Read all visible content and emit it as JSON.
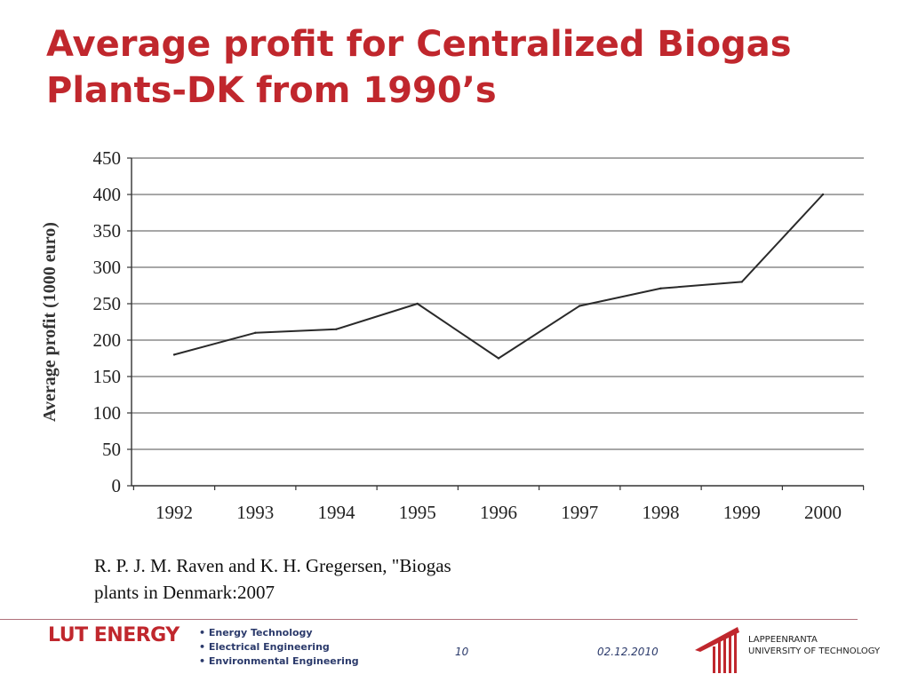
{
  "slide": {
    "title_line1": "Average profit for Centralized Biogas",
    "title_line2": "Plants-DK from 1990’s"
  },
  "chart_data": {
    "type": "line",
    "title": "",
    "xlabel": "",
    "ylabel": "Average profit (1000 euro)",
    "categories": [
      "1992",
      "1993",
      "1994",
      "1995",
      "1996",
      "1997",
      "1998",
      "1999",
      "2000"
    ],
    "series": [
      {
        "values": [
          180,
          210,
          215,
          250,
          175,
          247,
          271,
          280,
          400
        ]
      }
    ],
    "ylim": [
      0,
      450
    ],
    "yticks": [
      0,
      50,
      100,
      150,
      200,
      250,
      300,
      350,
      400,
      450
    ],
    "grid": true,
    "legend": "none",
    "line_color": "#2a2a2a",
    "grid_color": "#8a8a8a"
  },
  "citation": {
    "line1": "R. P. J. M. Raven and K. H. Gregersen, \"Biogas",
    "line2": "plants in Denmark:2007"
  },
  "footer": {
    "logo_text": "LUT ENERGY",
    "departments": [
      "Energy Technology",
      "Electrical Engineering",
      "Environmental Engineering"
    ],
    "page_number": "10",
    "date": "02.12.2010",
    "university_line1": "LAPPEENRANTA",
    "university_line2": "UNIVERSITY OF TECHNOLOGY",
    "brand_color": "#c0272d",
    "text_color": "#2b3a6b"
  }
}
